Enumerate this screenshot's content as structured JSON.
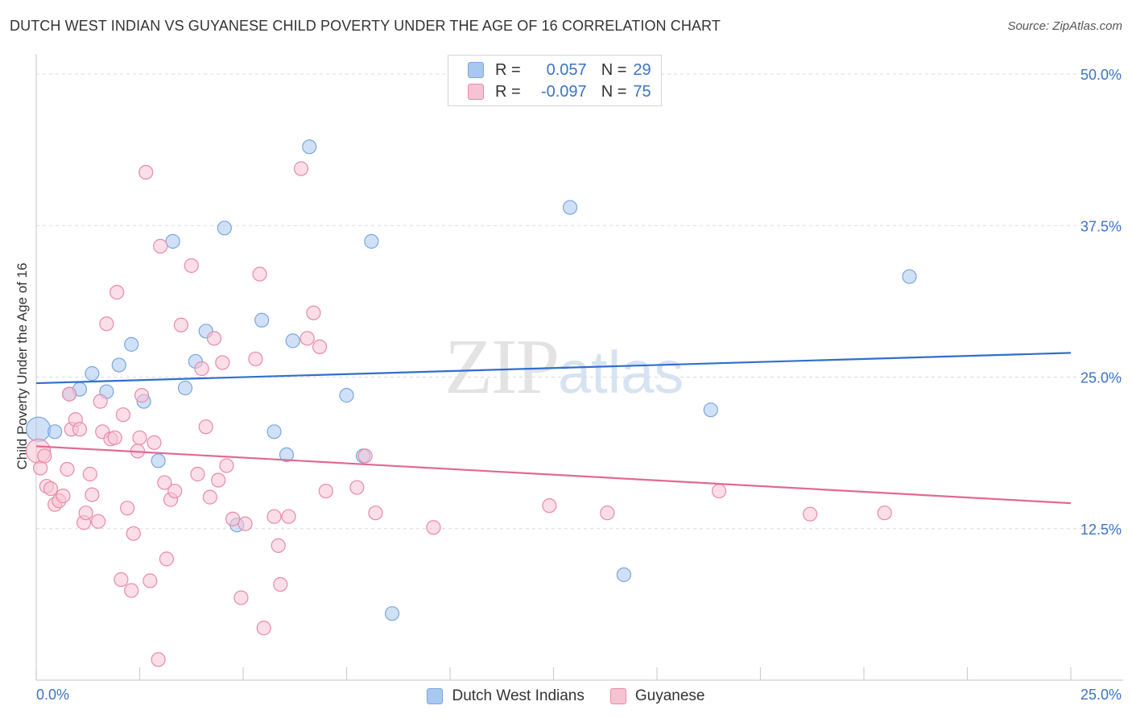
{
  "title": "DUTCH WEST INDIAN VS GUYANESE CHILD POVERTY UNDER THE AGE OF 16 CORRELATION CHART",
  "source": "Source: ZipAtlas.com",
  "watermark": {
    "zip": "ZIP",
    "atlas": "atlas"
  },
  "legend": {
    "rows": [
      {
        "r_label": "R =",
        "r_value": "0.057",
        "n_label": "N =",
        "n_value": "29",
        "color": "#a9c8f0",
        "border": "#7aa6e0"
      },
      {
        "r_label": "R =",
        "r_value": "-0.097",
        "n_label": "N =",
        "n_value": "75",
        "color": "#f7c3d3",
        "border": "#e98aa8"
      }
    ]
  },
  "bottom_legend": [
    {
      "label": "Dutch West Indians",
      "color": "#a9c8f0",
      "border": "#7aa6e0"
    },
    {
      "label": "Guyanese",
      "color": "#f7c3d3",
      "border": "#e98aa8"
    }
  ],
  "chart_data": {
    "type": "scatter",
    "title": "DUTCH WEST INDIAN VS GUYANESE CHILD POVERTY UNDER THE AGE OF 16 CORRELATION CHART",
    "xlabel": "",
    "ylabel": "Child Poverty Under the Age of 16",
    "xlim": [
      0,
      25
    ],
    "ylim": [
      0,
      51
    ],
    "x_tick_labels": [
      "0.0%",
      "25.0%"
    ],
    "y_ticks": [
      12.5,
      25.0,
      37.5,
      50.0
    ],
    "y_tick_labels": [
      "12.5%",
      "25.0%",
      "37.5%",
      "50.0%"
    ],
    "grid": "horizontal dashed",
    "series": [
      {
        "name": "Dutch West Indians",
        "color": "#7aa6e0",
        "fill": "#a9c8f0",
        "trend": {
          "x": [
            0,
            25
          ],
          "y": [
            24.5,
            27.0
          ]
        },
        "points": [
          [
            0.05,
            20.7,
            "large"
          ],
          [
            0.45,
            20.5
          ],
          [
            0.8,
            23.6
          ],
          [
            1.05,
            24.0
          ],
          [
            1.35,
            25.3
          ],
          [
            1.7,
            23.8
          ],
          [
            2.0,
            26.0
          ],
          [
            2.3,
            27.7
          ],
          [
            2.6,
            23.0
          ],
          [
            2.95,
            18.1
          ],
          [
            3.3,
            36.2
          ],
          [
            3.6,
            24.1
          ],
          [
            3.85,
            26.3
          ],
          [
            4.1,
            28.8
          ],
          [
            4.55,
            37.3
          ],
          [
            4.85,
            12.8
          ],
          [
            5.45,
            29.7
          ],
          [
            5.75,
            20.5
          ],
          [
            6.05,
            18.6
          ],
          [
            6.2,
            28.0
          ],
          [
            6.6,
            44.0
          ],
          [
            7.5,
            23.5
          ],
          [
            7.9,
            18.5
          ],
          [
            8.1,
            36.2
          ],
          [
            8.6,
            5.5
          ],
          [
            12.9,
            39.0
          ],
          [
            14.2,
            8.7
          ],
          [
            16.3,
            22.3
          ],
          [
            21.1,
            33.3
          ]
        ]
      },
      {
        "name": "Guyanese",
        "color": "#e98aa8",
        "fill": "#f7c3d3",
        "trend": {
          "x": [
            0,
            25
          ],
          "y": [
            19.3,
            14.6
          ]
        },
        "points": [
          [
            0.05,
            18.9,
            "large"
          ],
          [
            0.1,
            17.5
          ],
          [
            0.2,
            18.5
          ],
          [
            0.25,
            16.0
          ],
          [
            0.35,
            15.8
          ],
          [
            0.45,
            14.5
          ],
          [
            0.55,
            14.8
          ],
          [
            0.65,
            15.2
          ],
          [
            0.75,
            17.4
          ],
          [
            0.8,
            23.6
          ],
          [
            0.85,
            20.7
          ],
          [
            0.95,
            21.5
          ],
          [
            1.05,
            20.7
          ],
          [
            1.15,
            13.0
          ],
          [
            1.2,
            13.8
          ],
          [
            1.3,
            17.0
          ],
          [
            1.35,
            15.3
          ],
          [
            1.5,
            13.1
          ],
          [
            1.55,
            23.0
          ],
          [
            1.6,
            20.5
          ],
          [
            1.7,
            29.4
          ],
          [
            1.8,
            19.9
          ],
          [
            1.9,
            20.0
          ],
          [
            1.95,
            32.0
          ],
          [
            2.05,
            8.3
          ],
          [
            2.1,
            21.9
          ],
          [
            2.2,
            14.2
          ],
          [
            2.3,
            7.4
          ],
          [
            2.35,
            12.1
          ],
          [
            2.45,
            18.9
          ],
          [
            2.5,
            20.0
          ],
          [
            2.55,
            23.5
          ],
          [
            2.65,
            41.9
          ],
          [
            2.75,
            8.2
          ],
          [
            2.85,
            19.6
          ],
          [
            2.95,
            1.7
          ],
          [
            3.0,
            35.8
          ],
          [
            3.1,
            16.3
          ],
          [
            3.15,
            10.0
          ],
          [
            3.25,
            14.9
          ],
          [
            3.35,
            15.6
          ],
          [
            3.5,
            29.3
          ],
          [
            3.75,
            34.2
          ],
          [
            3.9,
            17.0
          ],
          [
            4.0,
            25.7
          ],
          [
            4.1,
            20.9
          ],
          [
            4.2,
            15.1
          ],
          [
            4.3,
            28.2
          ],
          [
            4.4,
            16.5
          ],
          [
            4.5,
            26.2
          ],
          [
            4.6,
            17.7
          ],
          [
            4.75,
            13.3
          ],
          [
            4.95,
            6.8
          ],
          [
            5.05,
            12.9
          ],
          [
            5.3,
            26.5
          ],
          [
            5.4,
            33.5
          ],
          [
            5.5,
            4.3
          ],
          [
            5.75,
            13.5
          ],
          [
            5.85,
            11.1
          ],
          [
            5.9,
            7.9
          ],
          [
            6.1,
            13.5
          ],
          [
            6.4,
            42.2
          ],
          [
            6.55,
            28.2
          ],
          [
            6.7,
            30.3
          ],
          [
            6.85,
            27.5
          ],
          [
            7.0,
            15.6
          ],
          [
            7.75,
            15.9
          ],
          [
            7.95,
            18.5
          ],
          [
            8.2,
            13.8
          ],
          [
            9.6,
            12.6
          ],
          [
            12.4,
            14.4
          ],
          [
            13.8,
            13.8
          ],
          [
            16.5,
            15.6
          ],
          [
            18.7,
            13.7
          ],
          [
            20.5,
            13.8
          ]
        ]
      }
    ]
  }
}
